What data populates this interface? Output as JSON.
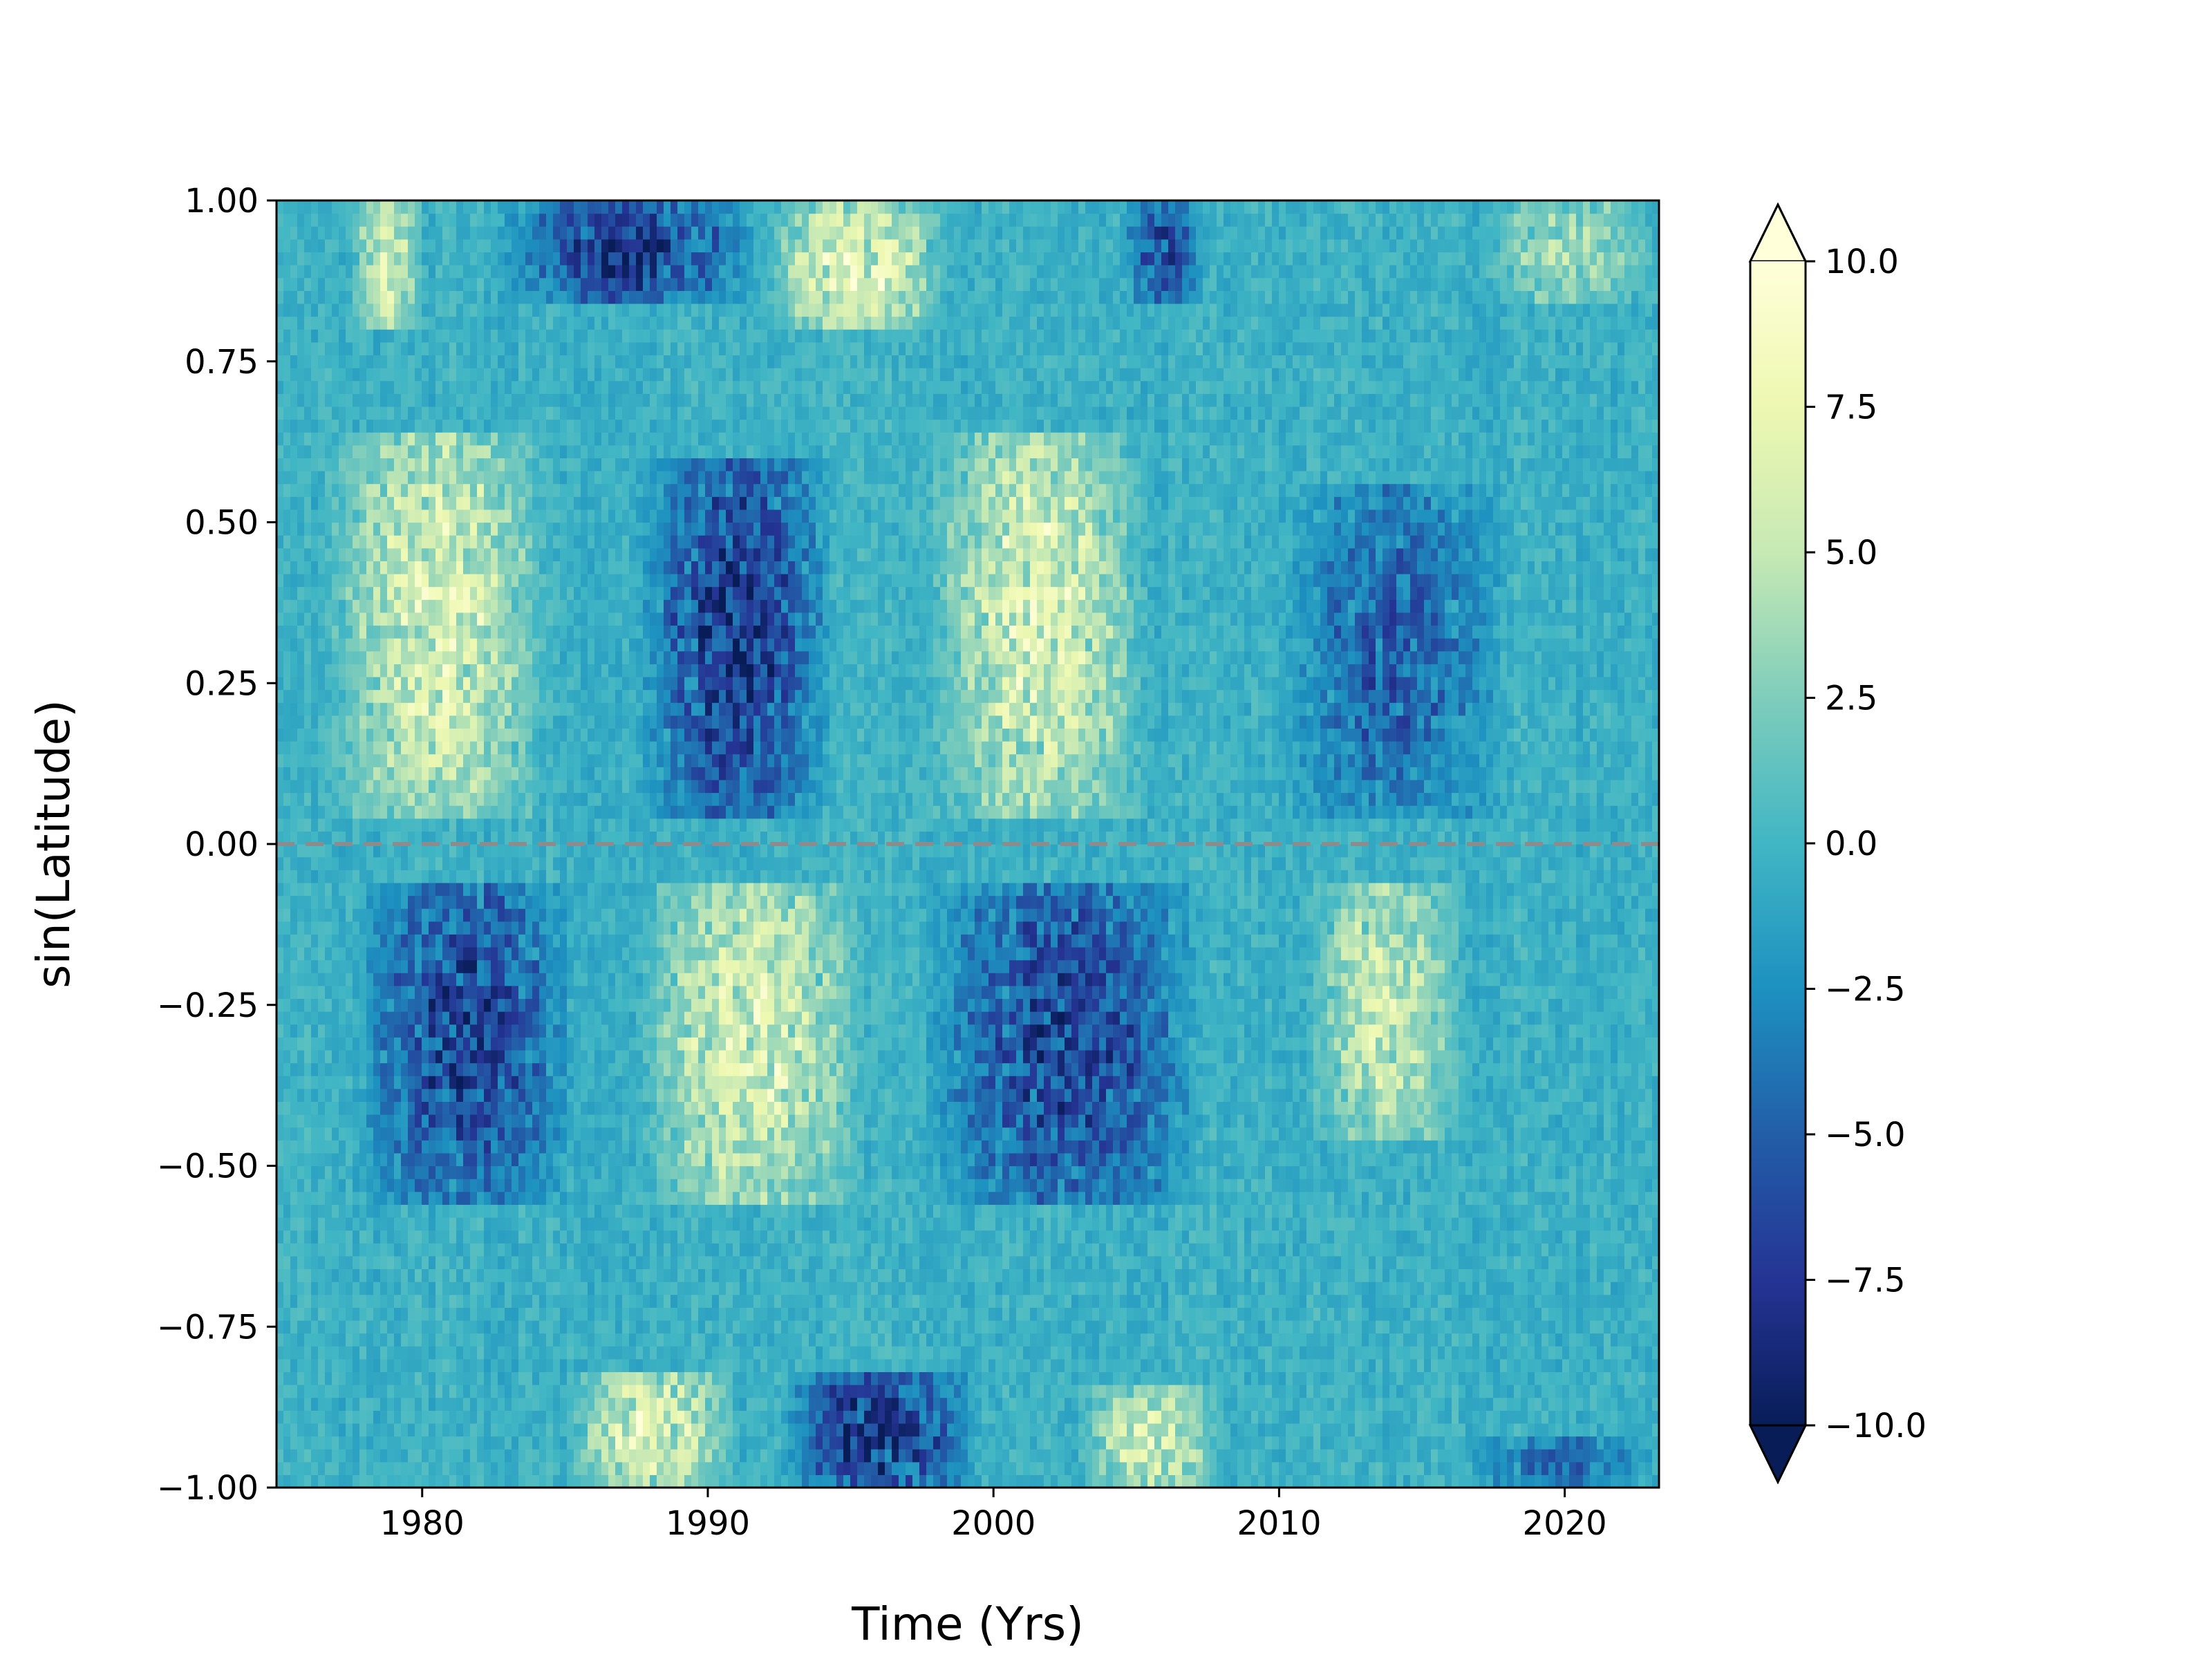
{
  "chart_data": {
    "type": "heatmap",
    "title": "",
    "xlabel": "Time (Yrs)",
    "ylabel": "sin(Latitude)",
    "xlim": [
      1974.9,
      2023.3
    ],
    "ylim": [
      -1.0,
      1.0
    ],
    "x_ticks": [
      1980,
      1990,
      2000,
      2010,
      2020
    ],
    "x_tick_labels": [
      "1980",
      "1990",
      "2000",
      "2010",
      "2020"
    ],
    "y_ticks": [
      -1.0,
      -0.75,
      -0.5,
      -0.25,
      0.0,
      0.25,
      0.5,
      0.75,
      1.0
    ],
    "y_tick_labels": [
      "−1.00",
      "−0.75",
      "−0.50",
      "−0.25",
      "0.00",
      "0.25",
      "0.50",
      "0.75",
      "1.00"
    ],
    "colorbar": {
      "colormap": "YlGnBu_r",
      "vmin": -10.0,
      "vmax": 10.0,
      "extend": "both",
      "ticks": [
        -10.0,
        -7.5,
        -5.0,
        -2.5,
        0.0,
        2.5,
        5.0,
        7.5,
        10.0
      ],
      "tick_labels": [
        "−10.0",
        "−7.5",
        "−5.0",
        "−2.5",
        "0.0",
        "2.5",
        "5.0",
        "7.5",
        "10.0"
      ]
    },
    "reference_line": {
      "y": 0.0,
      "style": "dashed",
      "color": "#8c8c8c"
    },
    "grid": false,
    "features": [
      {
        "x_range": [
          1976.5,
          1984.5
        ],
        "y_range": [
          0.05,
          0.65
        ],
        "sign": "positive",
        "peak": 8
      },
      {
        "x_range": [
          1977.5,
          1985.5
        ],
        "y_range": [
          -0.55,
          -0.05
        ],
        "sign": "negative",
        "peak": -8
      },
      {
        "x_range": [
          1987.5,
          1994.5
        ],
        "y_range": [
          0.05,
          0.6
        ],
        "sign": "negative",
        "peak": -9
      },
      {
        "x_range": [
          1987.5,
          1995.5
        ],
        "y_range": [
          -0.55,
          -0.05
        ],
        "sign": "positive",
        "peak": 8
      },
      {
        "x_range": [
          1997.5,
          2005.5
        ],
        "y_range": [
          0.05,
          0.65
        ],
        "sign": "positive",
        "peak": 8
      },
      {
        "x_range": [
          1997.5,
          2007.5
        ],
        "y_range": [
          -0.55,
          -0.05
        ],
        "sign": "negative",
        "peak": -8
      },
      {
        "x_range": [
          2010.0,
          2018.0
        ],
        "y_range": [
          0.05,
          0.55
        ],
        "sign": "negative",
        "peak": -6
      },
      {
        "x_range": [
          2011.0,
          2016.5
        ],
        "y_range": [
          -0.45,
          -0.05
        ],
        "sign": "positive",
        "peak": 7
      },
      {
        "x_range": [
          1977.5,
          1980.0
        ],
        "y_range": [
          0.8,
          1.0
        ],
        "sign": "positive",
        "peak": 8
      },
      {
        "x_range": [
          1982.5,
          1992.0
        ],
        "y_range": [
          0.85,
          1.0
        ],
        "sign": "negative",
        "peak": -9
      },
      {
        "x_range": [
          1992.0,
          1998.5
        ],
        "y_range": [
          0.8,
          1.0
        ],
        "sign": "positive",
        "peak": 9
      },
      {
        "x_range": [
          2004.5,
          2007.5
        ],
        "y_range": [
          0.85,
          1.0
        ],
        "sign": "negative",
        "peak": -8
      },
      {
        "x_range": [
          2017.0,
          2023.3
        ],
        "y_range": [
          0.85,
          1.0
        ],
        "sign": "positive",
        "peak": 5
      },
      {
        "x_range": [
          1985.0,
          1991.0
        ],
        "y_range": [
          -1.0,
          -0.82
        ],
        "sign": "positive",
        "peak": 9
      },
      {
        "x_range": [
          1992.5,
          1999.5
        ],
        "y_range": [
          -1.0,
          -0.82
        ],
        "sign": "negative",
        "peak": -10
      },
      {
        "x_range": [
          2003.0,
          2008.0
        ],
        "y_range": [
          -1.0,
          -0.85
        ],
        "sign": "positive",
        "peak": 8
      },
      {
        "x_range": [
          2016.5,
          2023.3
        ],
        "y_range": [
          -1.0,
          -0.92
        ],
        "sign": "negative",
        "peak": -5
      }
    ]
  }
}
